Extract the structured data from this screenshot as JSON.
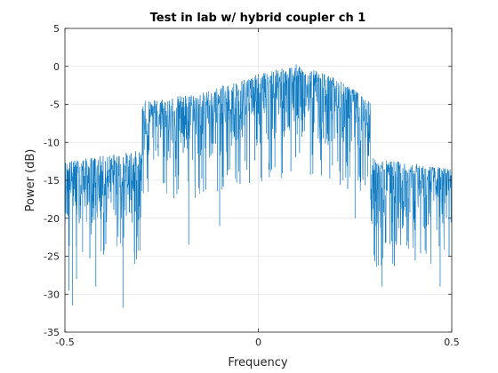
{
  "chart_data": {
    "type": "line",
    "title": "Test in lab w/ hybrid coupler ch 1",
    "xlabel": "Frequency",
    "ylabel": "Power (dB)",
    "xlim": [
      -0.5,
      0.5
    ],
    "ylim": [
      -35,
      5
    ],
    "xticks": [
      -0.5,
      0,
      0.5
    ],
    "xtick_labels": [
      "-0.5",
      "0",
      "0.5"
    ],
    "yticks": [
      5,
      0,
      -5,
      -10,
      -15,
      -20,
      -25,
      -30,
      -35
    ],
    "ytick_labels": [
      "5",
      "0",
      "-5",
      "-10",
      "-15",
      "-20",
      "-25",
      "-30",
      "-35"
    ],
    "grid": true,
    "legend": "none",
    "series_color": "#0072BD",
    "series": [
      {
        "description_of_shape": "dense noisy power spectrum",
        "envelope": [
          {
            "x": -0.5,
            "upper": -12.5,
            "base": -15.5,
            "floor": -22
          },
          {
            "x": -0.3,
            "upper": -11.0,
            "base": -15.0,
            "floor": -22
          },
          {
            "x": -0.3,
            "upper": -4.5,
            "base": -8.0,
            "floor": -14
          },
          {
            "x": -0.15,
            "upper": -3.5,
            "base": -7.0,
            "floor": -14
          },
          {
            "x": 0.0,
            "upper": -1.0,
            "base": -4.5,
            "floor": -12
          },
          {
            "x": 0.1,
            "upper": 0.3,
            "base": -3.5,
            "floor": -11
          },
          {
            "x": 0.2,
            "upper": -1.5,
            "base": -5.0,
            "floor": -12
          },
          {
            "x": 0.29,
            "upper": -4.5,
            "base": -7.5,
            "floor": -14
          },
          {
            "x": 0.29,
            "upper": -12.0,
            "base": -16.0,
            "floor": -23
          },
          {
            "x": 0.5,
            "upper": -13.5,
            "base": -16.0,
            "floor": -23
          }
        ],
        "notable_dips": [
          {
            "x": -0.49,
            "y": -29.5
          },
          {
            "x": -0.48,
            "y": -31.5
          },
          {
            "x": -0.47,
            "y": -28.0
          },
          {
            "x": -0.42,
            "y": -29.0
          },
          {
            "x": -0.35,
            "y": -31.8
          },
          {
            "x": -0.32,
            "y": -26.0
          },
          {
            "x": -0.18,
            "y": -23.5
          },
          {
            "x": -0.1,
            "y": -21.0
          },
          {
            "x": 0.25,
            "y": -20.0
          },
          {
            "x": 0.32,
            "y": -29.0
          },
          {
            "x": 0.47,
            "y": -29.0
          }
        ]
      }
    ]
  }
}
